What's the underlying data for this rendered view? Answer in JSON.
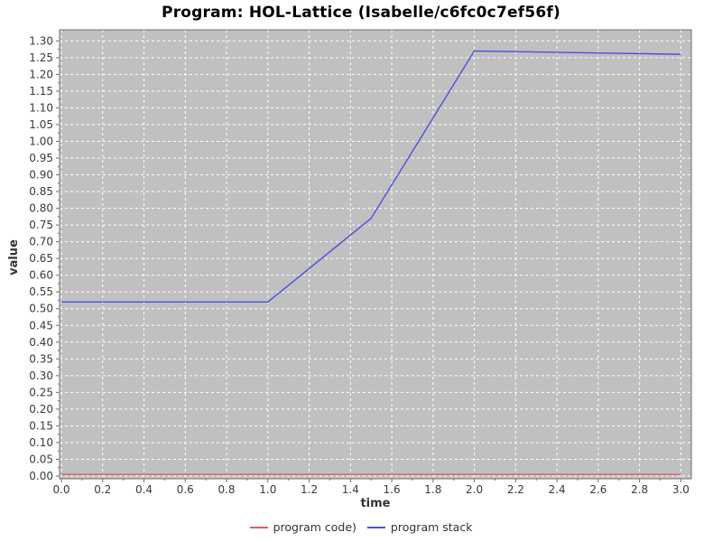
{
  "title": "Program: HOL-Lattice (Isabelle/c6fc0c7ef56f)",
  "colors": {
    "page_bg": "#ffffff",
    "plot_bg": "#c0c0c0",
    "grid": "#ffffff",
    "frame": "#6f6f6f",
    "tick_mark": "#6f6f6f",
    "tick_label": "#3a3a3a",
    "title_text": "#000000",
    "axis_label": "#333333",
    "series_program_code": "#e05c5c",
    "series_program_stack": "#4d4fdd"
  },
  "chart_data": {
    "type": "line",
    "title": "Program: HOL-Lattice (Isabelle/c6fc0c7ef56f)",
    "xlabel": "time",
    "ylabel": "value",
    "xlim": [
      0.0,
      3.0
    ],
    "ylim": [
      0.0,
      1.3
    ],
    "grid": true,
    "grid_style": "white-dashed-on-gray",
    "legend_position": "bottom-center",
    "x_ticks": [
      0.0,
      0.2,
      0.4,
      0.6,
      0.8,
      1.0,
      1.2,
      1.4,
      1.6,
      1.8,
      2.0,
      2.2,
      2.4,
      2.6,
      2.8,
      3.0
    ],
    "x_tick_labels": [
      "0.0",
      "0.2",
      "0.4",
      "0.6",
      "0.8",
      "1.0",
      "1.2",
      "1.4",
      "1.6",
      "1.8",
      "2.0",
      "2.2",
      "2.4",
      "2.6",
      "2.8",
      "3.0"
    ],
    "y_ticks": [
      0.0,
      0.05,
      0.1,
      0.15,
      0.2,
      0.25,
      0.3,
      0.35,
      0.4,
      0.45,
      0.5,
      0.55,
      0.6,
      0.65,
      0.7,
      0.75,
      0.8,
      0.85,
      0.9,
      0.95,
      1.0,
      1.05,
      1.1,
      1.15,
      1.2,
      1.25,
      1.3
    ],
    "y_tick_labels": [
      "0.00",
      "0.05",
      "0.10",
      "0.15",
      "0.20",
      "0.25",
      "0.30",
      "0.35",
      "0.40",
      "0.45",
      "0.50",
      "0.55",
      "0.60",
      "0.65",
      "0.70",
      "0.75",
      "0.80",
      "0.85",
      "0.90",
      "0.95",
      "1.00",
      "1.05",
      "1.10",
      "1.15",
      "1.20",
      "1.25",
      "1.30"
    ],
    "x": [
      0.0,
      0.5,
      1.0,
      1.5,
      2.0,
      2.5,
      3.0
    ],
    "series": [
      {
        "name": "program code)",
        "color": "#e05c5c",
        "values": [
          0.005,
          0.005,
          0.005,
          0.005,
          0.005,
          0.005,
          0.005
        ]
      },
      {
        "name": "program stack",
        "color": "#4d4fdd",
        "values": [
          0.52,
          0.52,
          0.52,
          0.77,
          1.27,
          1.265,
          1.26
        ]
      }
    ]
  }
}
